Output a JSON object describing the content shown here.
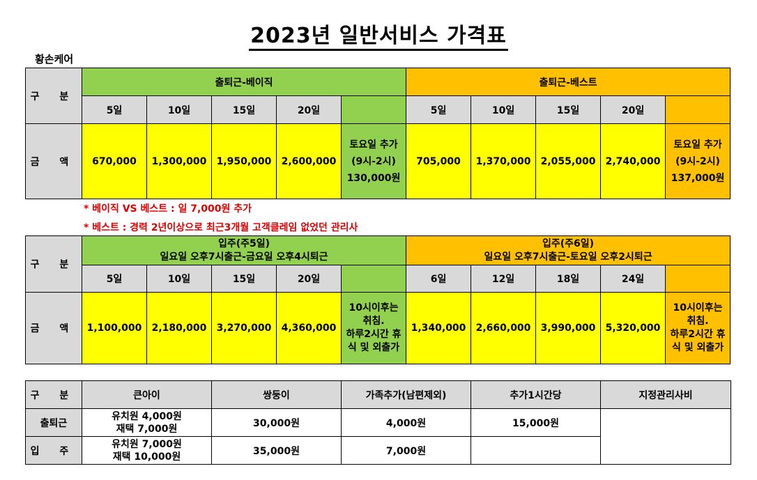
{
  "title": "2023년 일반서비스 가격표",
  "company": "황손케어",
  "table1": {
    "label_division": "구 분",
    "label_amount": "금 액",
    "basic": {
      "header": "출퇴근-베이직",
      "days": [
        "5일",
        "10일",
        "15일",
        "20일"
      ],
      "prices": [
        "670,000",
        "1,300,000",
        "1,950,000",
        "2,600,000"
      ],
      "saturday": [
        "토요일 추가",
        "(9시-2시)",
        "130,000원"
      ]
    },
    "best": {
      "header": "출퇴근-베스트",
      "days": [
        "5일",
        "10일",
        "15일",
        "20일"
      ],
      "prices": [
        "705,000",
        "1,370,000",
        "2,055,000",
        "2,740,000"
      ],
      "saturday": [
        "토요일 추가",
        "(9시-2시)",
        "137,000원"
      ]
    }
  },
  "notes": [
    "* 베이직 VS 베스트 : 일 7,000원 추가",
    "* 베스트 : 경력 2년이상으로 최근3개월 고객클레임 없었던 관리사"
  ],
  "table2": {
    "label_division": "구 분",
    "label_amount": "금 액",
    "five": {
      "header_line1": "입주(주5일)",
      "header_line2": "일요일 오후7시출근-금요일 오후4시퇴근",
      "days": [
        "5일",
        "10일",
        "15일",
        "20일"
      ],
      "prices": [
        "1,100,000",
        "2,180,000",
        "3,270,000",
        "4,360,000"
      ],
      "extra": [
        "10시이후는",
        "취침.",
        "하루2시간 휴",
        "식 및 외출가"
      ]
    },
    "six": {
      "header_line1": "입주(주6일)",
      "header_line2": "일요일 오후7시출근-토요일 오후2시퇴근",
      "days": [
        "6일",
        "12일",
        "18일",
        "24일"
      ],
      "prices": [
        "1,340,000",
        "2,660,000",
        "3,990,000",
        "5,320,000"
      ],
      "extra": [
        "10시이후는",
        "취침.",
        "하루2시간 휴",
        "식 및 외출가"
      ]
    }
  },
  "table3": {
    "headers": [
      "구 분",
      "큰아이",
      "쌍둥이",
      "가족추가(남편제외)",
      "추가1시간당",
      "지정관리사비"
    ],
    "rows": [
      {
        "label": "출퇴근",
        "child": [
          "유치원 4,000원",
          "재택  7,000원"
        ],
        "twins": "30,000원",
        "family": "4,000원",
        "hour": "15,000원"
      },
      {
        "label": "입 주",
        "child": [
          "유치원 7,000원",
          "재택  10,000원"
        ],
        "twins": "35,000원",
        "family": "7,000원",
        "hour": ""
      }
    ]
  }
}
